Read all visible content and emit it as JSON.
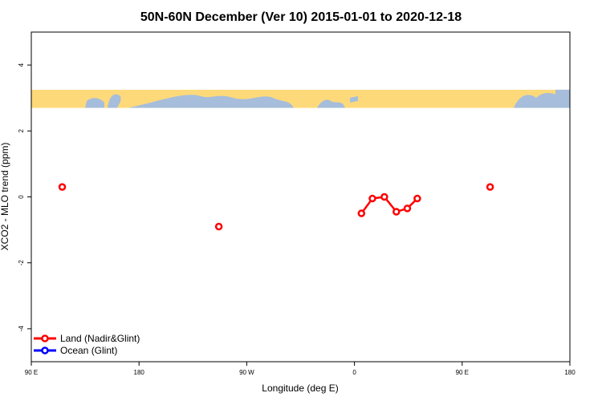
{
  "chart_data": {
    "type": "line",
    "title": "50N-60N December (Ver 10)   2015-01-01 to 2020-12-18",
    "xlabel": "Longitude (deg E)",
    "ylabel": "XCO2 - MLO trend (ppm)",
    "xlim": [
      -90,
      180
    ],
    "ylim": [
      -5,
      5
    ],
    "x_ticks": [
      {
        "value": -90,
        "label": "90 E"
      },
      {
        "value": -36,
        "label": "180"
      },
      {
        "value": 18,
        "label": "90 W"
      },
      {
        "value": 72,
        "label": "0"
      },
      {
        "value": 126,
        "label": "90 E"
      },
      {
        "value": 180,
        "label": "180"
      }
    ],
    "y_ticks": [
      -4,
      -2,
      0,
      2,
      4
    ],
    "map_band": {
      "ylim": [
        2.7,
        3.25
      ],
      "ocean_color": "#a6bddb",
      "land_color": "#fdd97a"
    },
    "legend": {
      "position": "bottom-left",
      "entries": [
        {
          "label": "Land (Nadir&Glint)",
          "color": "#ff0000"
        },
        {
          "label": "Ocean (Glint)",
          "color": "#0000ff"
        }
      ]
    },
    "series": [
      {
        "name": "Land (Nadir&Glint)",
        "color": "#ff0000",
        "segments": [
          [
            {
              "x": -74.5,
              "y": 0.3
            }
          ],
          [
            {
              "x": 4.0,
              "y": -0.9
            }
          ],
          [
            {
              "x": 75.5,
              "y": -0.5
            },
            {
              "x": 81.0,
              "y": -0.05
            },
            {
              "x": 87.0,
              "y": 0.0
            },
            {
              "x": 93.0,
              "y": -0.45
            },
            {
              "x": 98.5,
              "y": -0.35
            },
            {
              "x": 103.5,
              "y": -0.05
            }
          ],
          [
            {
              "x": 140.0,
              "y": 0.3
            }
          ]
        ]
      },
      {
        "name": "Ocean (Glint)",
        "color": "#0000ff",
        "segments": []
      }
    ]
  }
}
